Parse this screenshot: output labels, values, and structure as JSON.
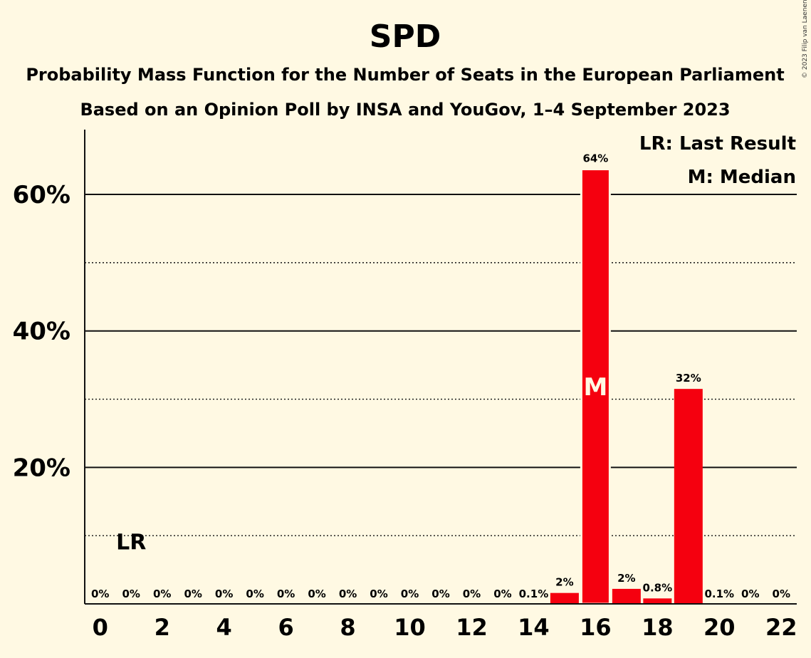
{
  "chart_data": {
    "type": "bar",
    "title": "SPD",
    "subtitle_lines": [
      "Probability Mass Function for the Number of Seats in the European Parliament",
      "Based on an Opinion Poll by INSA and YouGov, 1–4 September 2023"
    ],
    "copyright": "© 2023 Filip van Laenen",
    "x": [
      0,
      1,
      2,
      3,
      4,
      5,
      6,
      7,
      8,
      9,
      10,
      11,
      12,
      13,
      14,
      15,
      16,
      17,
      18,
      19,
      20,
      21,
      22
    ],
    "values": [
      0,
      0,
      0,
      0,
      0,
      0,
      0,
      0,
      0,
      0,
      0,
      0,
      0,
      0,
      0.1,
      1.6,
      63.7,
      2.2,
      0.8,
      31.5,
      0.1,
      0,
      0
    ],
    "value_labels": [
      "0%",
      "0%",
      "0%",
      "0%",
      "0%",
      "0%",
      "0%",
      "0%",
      "0%",
      "0%",
      "0%",
      "0%",
      "0%",
      "0%",
      "0.1%",
      "2%",
      "64%",
      "2%",
      "0.8%",
      "32%",
      "0.1%",
      "0%",
      "0%"
    ],
    "x_ticks": [
      0,
      2,
      4,
      6,
      8,
      10,
      12,
      14,
      16,
      18,
      20,
      22
    ],
    "x_tick_labels": [
      "0",
      "2",
      "4",
      "6",
      "8",
      "10",
      "12",
      "14",
      "16",
      "18",
      "20",
      "22"
    ],
    "y_ticks": [
      20,
      40,
      60
    ],
    "y_tick_labels": [
      "20%",
      "40%",
      "60%"
    ],
    "y_minor_ticks": [
      10,
      30,
      50
    ],
    "ylim": [
      0,
      69.5
    ],
    "xlim": [
      -0.5,
      22.5
    ],
    "bar_color": "#F5000F",
    "last_result": {
      "x": 1,
      "label": "LR"
    },
    "median": {
      "x": 16,
      "label": "M"
    },
    "legend": [
      "LR: Last Result",
      "M: Median"
    ],
    "legend_position": "top-right",
    "grid": true
  }
}
